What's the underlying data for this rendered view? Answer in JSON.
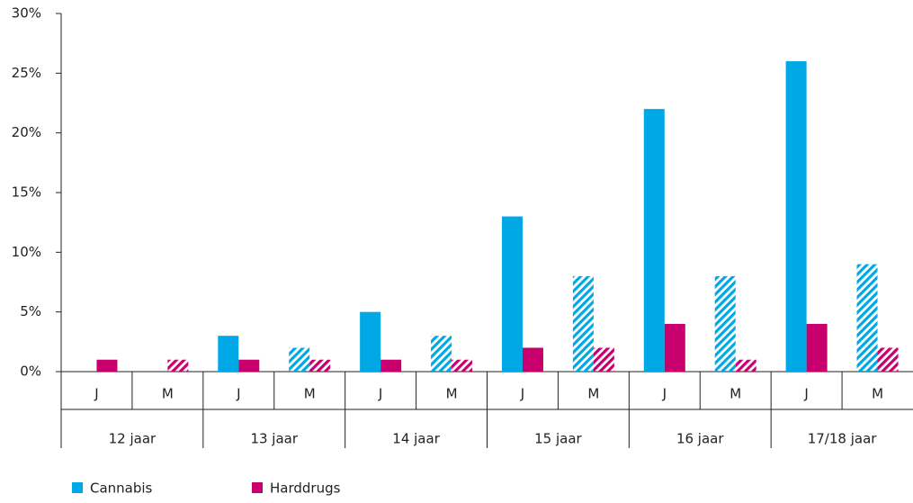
{
  "chart_data": {
    "type": "bar",
    "groups": [
      "12 jaar",
      "13 jaar",
      "14 jaar",
      "15 jaar",
      "16 jaar",
      "17/18 jaar"
    ],
    "categories": [
      "J",
      "M",
      "J",
      "M",
      "J",
      "M",
      "J",
      "M",
      "J",
      "M",
      "J",
      "M"
    ],
    "series": [
      {
        "name": "Cannabis",
        "color": "#00a8e6",
        "values": [
          0,
          0,
          3,
          2,
          5,
          3,
          13,
          8,
          22,
          8,
          26,
          9
        ]
      },
      {
        "name": "Harddrugs",
        "color": "#c7006e",
        "values": [
          1,
          1,
          1,
          1,
          1,
          1,
          2,
          2,
          4,
          1,
          4,
          2
        ]
      }
    ],
    "ylim": [
      0,
      30
    ],
    "yticks": [
      {
        "value": 0,
        "label": "0%"
      },
      {
        "value": 5,
        "label": "5%"
      },
      {
        "value": 10,
        "label": "10%"
      },
      {
        "value": 15,
        "label": "15%"
      },
      {
        "value": 20,
        "label": "20%"
      },
      {
        "value": 25,
        "label": "25%"
      },
      {
        "value": 30,
        "label": "30%"
      }
    ]
  }
}
